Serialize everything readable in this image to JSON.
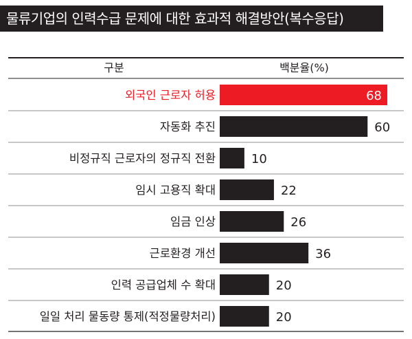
{
  "chart_data": {
    "type": "bar",
    "orientation": "horizontal",
    "title": "물류기업의 인력수급 문제에 대한 효과적 해결방안(복수응답)",
    "category_header": "구분",
    "value_header": "백분율(%)",
    "categories": [
      "외국인 근로자 허용",
      "자동화 추진",
      "비정규직 근로자의 정규직 전환",
      "임시 고용직 확대",
      "임금 인상",
      "근로환경 개선",
      "인력 공급업체 수 확대",
      "일일 처리 물동량 통제(적정물량처리)"
    ],
    "values": [
      68,
      60,
      10,
      22,
      26,
      36,
      20,
      20
    ],
    "highlight_index": 0,
    "xlim": [
      0,
      68
    ],
    "grid": false,
    "legend": "none",
    "colors": {
      "bar": "#231f20",
      "highlight_bar": "#ed1c24",
      "highlight_text": "#ed1c24",
      "highlight_value_text": "#ffffff",
      "text": "#231f20",
      "rule": "#231f20",
      "title_bg": "#231f20",
      "title_text": "#ffffff"
    }
  }
}
